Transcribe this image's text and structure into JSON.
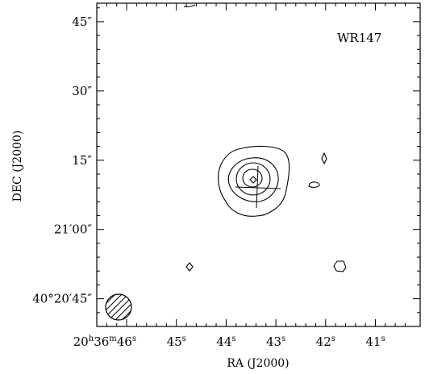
{
  "chart_data": {
    "type": "contour",
    "source_label": "WR147",
    "xlabel": "RA (J2000)",
    "ylabel": "DEC (J2000)",
    "xlim_seconds": [
      46.6,
      40.1
    ],
    "ylim_arcsec_offset": [
      -21,
      49
    ],
    "x_ticks": [
      {
        "value": 46,
        "sup": "s",
        "label": "20",
        "label_sup_h": "h",
        "label_min": "36",
        "label_sup_m": "m",
        "label_sec": "46"
      },
      {
        "value": 45,
        "label": "45"
      },
      {
        "value": 44,
        "label": "44"
      },
      {
        "value": 43,
        "label": "43"
      },
      {
        "value": 42,
        "label": "42"
      },
      {
        "value": 41,
        "label": "41"
      }
    ],
    "y_ticks": [
      {
        "value": 45,
        "label": "45″"
      },
      {
        "value": 30,
        "label": "30″"
      },
      {
        "value": 15,
        "label": "15″"
      },
      {
        "value": 0,
        "label": "21′00″"
      },
      {
        "value": -15,
        "label": "40°20′45″"
      }
    ],
    "peak_marker": {
      "ra_s": 43.6,
      "dec_offset": 8
    },
    "contour_levels": 4,
    "beam": {
      "location": "bottom-left",
      "hatched": true
    },
    "grid": false
  }
}
